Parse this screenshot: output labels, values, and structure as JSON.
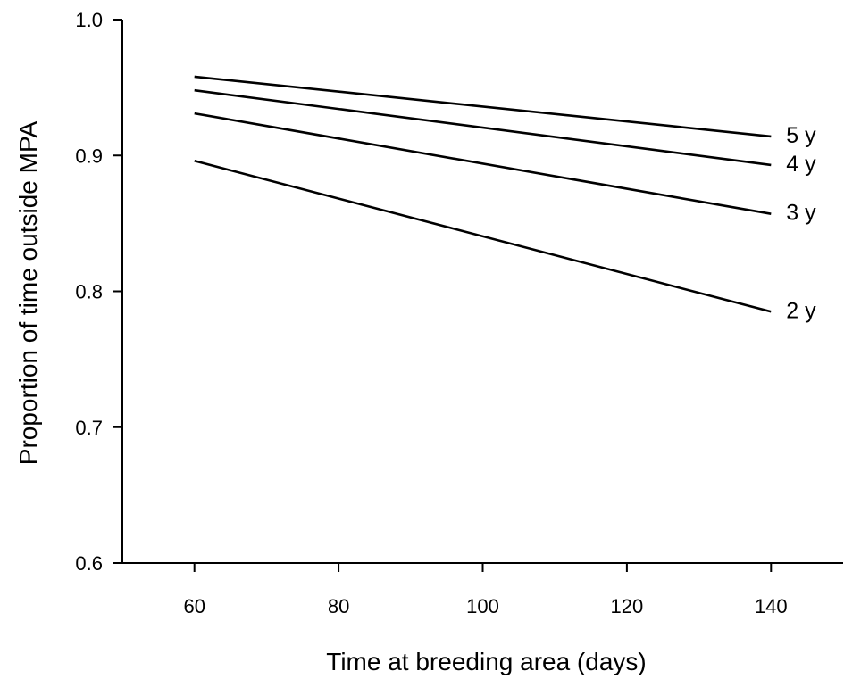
{
  "chart_data": {
    "type": "line",
    "xlabel": "Time at breeding area (days)",
    "ylabel": "Proportion of time outside MPA",
    "xlim": [
      50,
      150
    ],
    "ylim": [
      0.6,
      1.0
    ],
    "xticks": [
      60,
      80,
      100,
      120,
      140
    ],
    "yticks": [
      0.6,
      0.7,
      0.8,
      0.9,
      1.0
    ],
    "xtick_labels": [
      "60",
      "80",
      "100",
      "120",
      "140"
    ],
    "ytick_labels": [
      "0.6",
      "0.7",
      "0.8",
      "0.9",
      "1.0"
    ],
    "grid": false,
    "series": [
      {
        "name": "5 y",
        "x": [
          60,
          140
        ],
        "y": [
          0.958,
          0.914
        ]
      },
      {
        "name": "4 y",
        "x": [
          60,
          140
        ],
        "y": [
          0.948,
          0.893
        ]
      },
      {
        "name": "3 y",
        "x": [
          60,
          140
        ],
        "y": [
          0.931,
          0.857
        ]
      },
      {
        "name": "2 y",
        "x": [
          60,
          140
        ],
        "y": [
          0.896,
          0.785
        ]
      }
    ],
    "colors": {
      "line": "#000000",
      "background": "#ffffff"
    }
  }
}
